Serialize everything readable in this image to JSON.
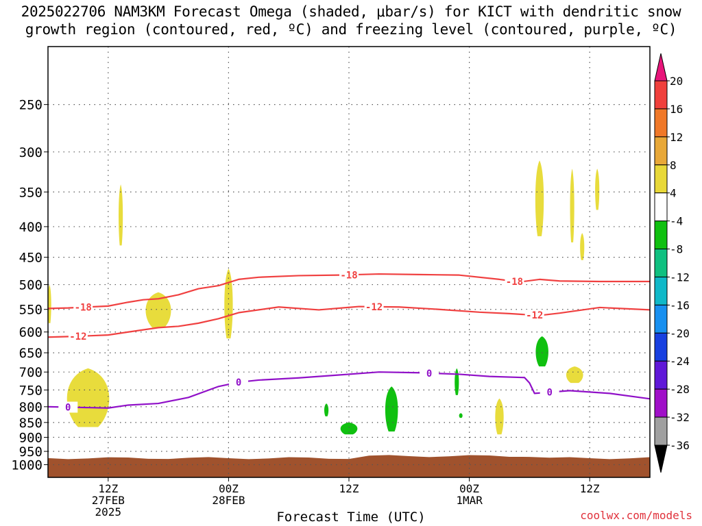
{
  "chart_data": {
    "type": "heatmap",
    "title_line1": "2025022706 NAM3KM Forecast Omega (shaded, μbar/s) for KICT with dendritic snow",
    "title_line2": "growth region (contoured, red, ºC) and freezing level (contoured, purple, ºC)",
    "xlabel": "Forecast Time (UTC)",
    "ylabel": "",
    "x_axis": {
      "unit": "forecast hour from 2025022706",
      "range_hours": [
        0,
        60
      ],
      "ticks": [
        {
          "hour": 6,
          "label": [
            "12Z",
            "27FEB",
            "2025"
          ]
        },
        {
          "hour": 18,
          "label": [
            "00Z",
            "28FEB"
          ]
        },
        {
          "hour": 30,
          "label": [
            "12Z"
          ]
        },
        {
          "hour": 42,
          "label": [
            "00Z",
            "1MAR"
          ]
        },
        {
          "hour": 54,
          "label": [
            "12Z"
          ]
        }
      ]
    },
    "y_axis": {
      "unit": "hPa",
      "inverted": true,
      "ticks": [
        250,
        300,
        350,
        400,
        450,
        500,
        550,
        600,
        650,
        700,
        750,
        800,
        850,
        900,
        950,
        1000
      ]
    },
    "grid": true,
    "colorbar": {
      "labels": [
        "20",
        "16",
        "12",
        "8",
        "4",
        "-4",
        "-8",
        "-12",
        "-16",
        "-20",
        "-24",
        "-28",
        "-32",
        "-36"
      ],
      "colors": [
        "#e8157a",
        "#f0403c",
        "#f07828",
        "#e8a838",
        "#e8d838",
        "#ffffff",
        "#10c010",
        "#10c080",
        "#10b8c8",
        "#1890f0",
        "#1840e0",
        "#6018d8",
        "#a010c8",
        "#a0a0a0",
        "#000000"
      ]
    },
    "omega_patches": [
      {
        "sign": "positive",
        "color": "#e8dc3c",
        "x_hours": [
          0,
          0.3
        ],
        "p_range": [
          500,
          580
        ]
      },
      {
        "sign": "positive",
        "color": "#e8dc3c",
        "x_hours": [
          7.0,
          7.5
        ],
        "p_range": [
          340,
          430
        ]
      },
      {
        "sign": "positive",
        "color": "#e8dc3c",
        "x_hours": [
          9.5,
          12.5
        ],
        "p_range": [
          515,
          590
        ]
      },
      {
        "sign": "positive",
        "color": "#e8dc3c",
        "x_hours": [
          1.5,
          6.5
        ],
        "p_range": [
          690,
          865
        ]
      },
      {
        "sign": "positive",
        "color": "#e8dc3c",
        "x_hours": [
          17.5,
          18.5
        ],
        "p_range": [
          470,
          615
        ]
      },
      {
        "sign": "positive",
        "color": "#e8dc3c",
        "x_hours": [
          48.5,
          49.5
        ],
        "p_range": [
          310,
          415
        ]
      },
      {
        "sign": "positive",
        "color": "#e8dc3c",
        "x_hours": [
          52,
          52.5
        ],
        "p_range": [
          320,
          425
        ]
      },
      {
        "sign": "positive",
        "color": "#e8dc3c",
        "x_hours": [
          54.5,
          55
        ],
        "p_range": [
          320,
          375
        ]
      },
      {
        "sign": "positive",
        "color": "#e8dc3c",
        "x_hours": [
          53,
          53.5
        ],
        "p_range": [
          410,
          455
        ]
      },
      {
        "sign": "positive",
        "color": "#e8dc3c",
        "x_hours": [
          51.5,
          53.5
        ],
        "p_range": [
          685,
          730
        ]
      },
      {
        "sign": "positive",
        "color": "#e8dc3c",
        "x_hours": [
          44.5,
          45.5
        ],
        "p_range": [
          775,
          890
        ]
      },
      {
        "sign": "negative",
        "color": "#10c010",
        "x_hours": [
          48.5,
          50
        ],
        "p_range": [
          610,
          685
        ]
      },
      {
        "sign": "negative",
        "color": "#10c010",
        "x_hours": [
          40.5,
          41
        ],
        "p_range": [
          690,
          765
        ]
      },
      {
        "sign": "negative",
        "color": "#10c010",
        "x_hours": [
          33.5,
          35
        ],
        "p_range": [
          740,
          880
        ]
      },
      {
        "sign": "negative",
        "color": "#10c010",
        "x_hours": [
          29,
          31
        ],
        "p_range": [
          850,
          890
        ]
      },
      {
        "sign": "negative",
        "color": "#10c010",
        "x_hours": [
          27.5,
          28
        ],
        "p_range": [
          790,
          830
        ]
      },
      {
        "sign": "negative",
        "color": "#10c010",
        "x_hours": [
          41,
          41.3
        ],
        "p_range": [
          820,
          835
        ]
      }
    ],
    "contours": [
      {
        "name": "-18",
        "color": "#f04040",
        "label": "-18",
        "x": [
          0,
          2,
          4,
          6,
          8,
          9.5,
          11,
          13,
          15,
          17,
          19,
          21,
          25,
          29,
          33,
          37,
          41,
          45,
          47,
          49,
          51,
          55,
          60
        ],
        "p": [
          548,
          547,
          545,
          543,
          535,
          530,
          528,
          520,
          508,
          502,
          490,
          486,
          483,
          482,
          480,
          481,
          482,
          490,
          495,
          490,
          493,
          494,
          494
        ],
        "label_x": [
          3.5,
          30,
          46.5
        ]
      },
      {
        "name": "-12",
        "color": "#f04040",
        "label": "-12",
        "x": [
          0,
          3,
          6,
          8,
          11,
          13,
          15,
          17,
          19,
          23,
          27,
          31,
          35,
          39,
          43,
          46,
          49,
          51,
          55,
          60
        ],
        "p": [
          612,
          610,
          607,
          600,
          590,
          587,
          580,
          570,
          557,
          545,
          551,
          544,
          545,
          550,
          556,
          559,
          563,
          558,
          546,
          551
        ],
        "label_x": [
          3,
          32.5,
          48.5
        ]
      },
      {
        "name": "0",
        "color": "#9010c8",
        "label": "0",
        "x": [
          0,
          3,
          6,
          8,
          11,
          14,
          17,
          19,
          21,
          25,
          29,
          33,
          37,
          41,
          44,
          47.5,
          48,
          48.5,
          52,
          56,
          60
        ],
        "p": [
          800,
          802,
          804,
          795,
          790,
          772,
          740,
          728,
          722,
          716,
          708,
          700,
          702,
          706,
          712,
          715,
          730,
          760,
          752,
          760,
          776
        ],
        "label_x": [
          2,
          19,
          38,
          50
        ]
      }
    ],
    "surface_color": "#a0522d",
    "credit": "coolwx.com/models"
  }
}
